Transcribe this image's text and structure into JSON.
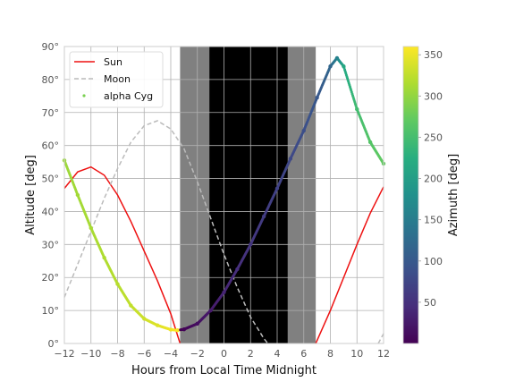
{
  "chart_data": {
    "type": "line",
    "title": "",
    "xlabel": "Hours from Local Time Midnight",
    "ylabel": "Altitude [deg]",
    "xlim": [
      -12,
      12
    ],
    "ylim": [
      0,
      90
    ],
    "xticks": [
      -12,
      -10,
      -8,
      -6,
      -4,
      -2,
      0,
      2,
      4,
      6,
      8,
      10,
      12
    ],
    "xtick_labels": [
      "−12",
      "−10",
      "−8",
      "−6",
      "−4",
      "−2",
      "0",
      "2",
      "4",
      "6",
      "8",
      "10",
      "12"
    ],
    "yticks": [
      0,
      10,
      20,
      30,
      40,
      50,
      60,
      70,
      80,
      90
    ],
    "ytick_labels": [
      "0°",
      "10°",
      "20°",
      "30°",
      "40°",
      "50°",
      "60°",
      "70°",
      "80°",
      "90°"
    ],
    "grid": true,
    "legend_position": "top-left",
    "twilight_bands": [
      {
        "x": [
          -3.3,
          -1.1
        ],
        "color": "#808080"
      },
      {
        "x": [
          -1.1,
          4.8
        ],
        "color": "#000000"
      },
      {
        "x": [
          4.8,
          6.9
        ],
        "color": "#808080"
      }
    ],
    "series": [
      {
        "name": "Sun",
        "style": "solid",
        "color": "#ee1111",
        "x": [
          -12,
          -11,
          -10,
          -9,
          -8,
          -7,
          -6,
          -5,
          -4,
          -3.3,
          6.9,
          8,
          9,
          10,
          11,
          12
        ],
        "y": [
          47,
          52,
          53.5,
          51,
          45,
          37,
          28,
          19,
          9,
          0,
          0,
          10,
          20,
          30,
          39.5,
          47.5
        ]
      },
      {
        "name": "Moon",
        "style": "dashed",
        "color": "#bbbbbb",
        "x": [
          -12,
          -11,
          -10,
          -9,
          -8,
          -7,
          -6,
          -5,
          -4,
          -3,
          -2,
          -1,
          0,
          1,
          2,
          3,
          3.3,
          11.6,
          12
        ],
        "y": [
          14,
          24,
          34,
          44,
          53,
          61,
          66,
          67.5,
          65,
          59,
          49,
          38,
          27,
          17,
          8,
          1.5,
          0,
          0,
          3
        ]
      },
      {
        "name": "alpha Cyg",
        "style": "points",
        "colorbar_variable": "azimuth",
        "x": [
          -12,
          -11,
          -10,
          -9,
          -8,
          -7,
          -6,
          -5,
          -4,
          -3.5,
          -3,
          -2,
          -1,
          0,
          1,
          2,
          3,
          4,
          5,
          6,
          7,
          8,
          8.5,
          9,
          10,
          11,
          12
        ],
        "y": [
          55.5,
          45,
          35,
          26,
          18,
          11.5,
          7.5,
          5.5,
          4.2,
          4,
          4.3,
          6,
          10,
          15.5,
          22.5,
          30,
          38.5,
          47,
          56,
          64.5,
          74.5,
          84,
          86.5,
          84,
          71,
          61,
          54.5
        ],
        "azimuth": [
          305,
          309,
          312,
          316,
          320,
          326,
          333,
          342,
          352,
          358,
          3,
          14,
          26,
          37,
          47,
          56,
          63,
          70,
          78,
          86,
          98,
          118,
          155,
          215,
          248,
          262,
          272
        ]
      }
    ],
    "colorbar": {
      "label": "Azimuth [deg]",
      "colormap": "viridis",
      "range": [
        0,
        360
      ],
      "ticks": [
        50,
        100,
        150,
        200,
        250,
        300,
        350
      ],
      "tick_labels": [
        "50",
        "100",
        "150",
        "200",
        "250",
        "300",
        "350"
      ]
    }
  }
}
